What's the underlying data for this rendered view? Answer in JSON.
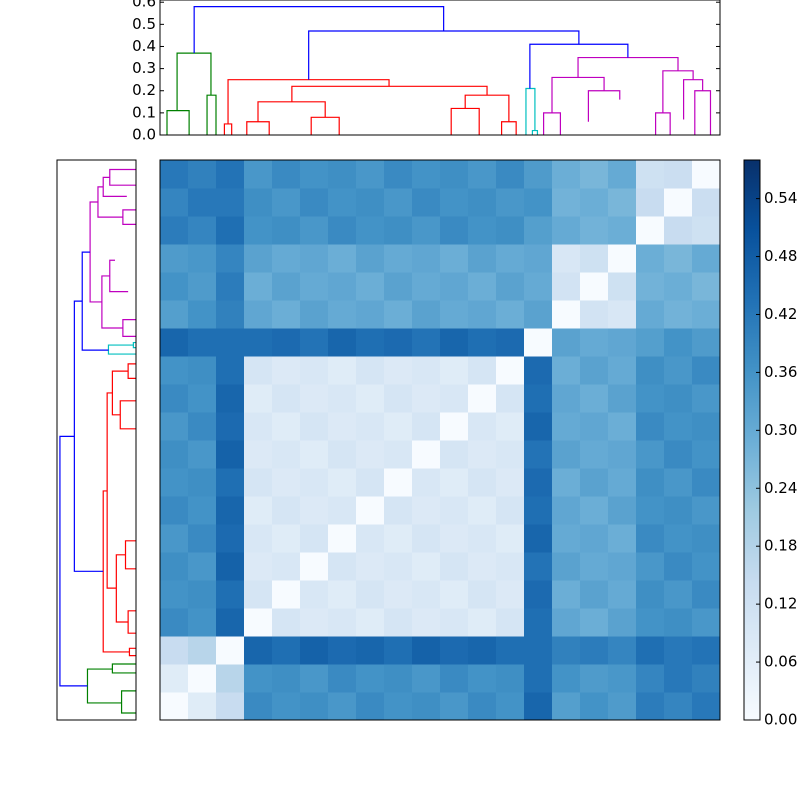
{
  "chart_data": [
    {
      "type": "dendrogram",
      "xlim": [
        0,
        20
      ],
      "ylim": [
        0,
        0.61
      ],
      "yticks": [
        {
          "value": 0,
          "label": "0.0"
        },
        0.1,
        0.2,
        0.3,
        0.4,
        0.5,
        0.6
      ],
      "links": [
        {
          "x": [
            0.25,
            0.25,
            1.04,
            1.04
          ],
          "y": [
            0,
            0.11,
            0.11,
            0
          ],
          "color": "#008000"
        },
        {
          "x": [
            1.68,
            1.68,
            2.0,
            2.0
          ],
          "y": [
            0,
            0.18,
            0.18,
            0
          ],
          "color": "#008000"
        },
        {
          "x": [
            0.61,
            0.61,
            1.82,
            1.82
          ],
          "y": [
            0.11,
            0.37,
            0.37,
            0.18
          ],
          "color": "#008000"
        },
        {
          "x": [
            2.3,
            2.3,
            2.56,
            2.56
          ],
          "y": [
            0,
            0.05,
            0.05,
            0
          ],
          "color": "#ff0000"
        },
        {
          "x": [
            2.43,
            2.43,
            8.18,
            8.18
          ],
          "y": [
            0.05,
            0.25,
            0.25,
            0.22
          ],
          "color": "#ff0000"
        },
        {
          "x": [
            4.71,
            4.71,
            11.68,
            11.68
          ],
          "y": [
            0.15,
            0.22,
            0.22,
            0.18
          ],
          "color": "#ff0000"
        },
        {
          "x": [
            3.5,
            3.5,
            5.9,
            5.9
          ],
          "y": [
            0.06,
            0.15,
            0.15,
            0.08
          ],
          "color": "#ff0000"
        },
        {
          "x": [
            10.9,
            10.9,
            12.46,
            12.46
          ],
          "y": [
            0.12,
            0.18,
            0.18,
            0.06
          ],
          "color": "#ff0000"
        },
        {
          "x": [
            3.1,
            3.1,
            3.9,
            3.9
          ],
          "y": [
            0,
            0.06,
            0.06,
            0
          ],
          "color": "#ff0000"
        },
        {
          "x": [
            5.4,
            5.4,
            6.4,
            6.4
          ],
          "y": [
            0,
            0.08,
            0.08,
            0
          ],
          "color": "#ff0000"
        },
        {
          "x": [
            10.4,
            10.4,
            11.4,
            11.4
          ],
          "y": [
            0,
            0.12,
            0.12,
            0
          ],
          "color": "#ff0000"
        },
        {
          "x": [
            12.2,
            12.2,
            12.72,
            12.72
          ],
          "y": [
            0,
            0.06,
            0.06,
            0
          ],
          "color": "#ff0000"
        },
        {
          "x": [
            13.07,
            13.07,
            13.39,
            13.39
          ],
          "y": [
            0,
            0.21,
            0.21,
            0.02
          ],
          "color": "#00bfbf"
        },
        {
          "x": [
            13.3,
            13.3,
            13.48,
            13.48
          ],
          "y": [
            0,
            0.02,
            0.02,
            0
          ],
          "color": "#00bfbf"
        },
        {
          "x": [
            14.93,
            14.93,
            18.5,
            18.5
          ],
          "y": [
            0.26,
            0.35,
            0.35,
            0.29
          ],
          "color": "#bf00bf"
        },
        {
          "x": [
            14.0,
            14.0,
            15.86,
            15.86
          ],
          "y": [
            0.1,
            0.26,
            0.26,
            0.2
          ],
          "color": "#bf00bf"
        },
        {
          "x": [
            17.96,
            17.96,
            19.04,
            19.04
          ],
          "y": [
            0.1,
            0.29,
            0.29,
            0.25
          ],
          "color": "#bf00bf"
        },
        {
          "x": [
            13.7,
            13.7,
            14.3,
            14.3
          ],
          "y": [
            0,
            0.1,
            0.1,
            0
          ],
          "color": "#bf00bf"
        },
        {
          "x": [
            15.3,
            15.3,
            16.42,
            16.42
          ],
          "y": [
            0.06,
            0.2,
            0.2,
            0.16
          ],
          "color": "#bf00bf"
        },
        {
          "x": [
            17.7,
            17.7,
            18.22,
            18.22
          ],
          "y": [
            0,
            0.1,
            0.1,
            0
          ],
          "color": "#bf00bf"
        },
        {
          "x": [
            18.7,
            18.7,
            19.38,
            19.38
          ],
          "y": [
            0.07,
            0.25,
            0.25,
            0.2
          ],
          "color": "#bf00bf"
        },
        {
          "x": [
            19.1,
            19.1,
            19.66,
            19.66
          ],
          "y": [
            0,
            0.2,
            0.2,
            0
          ],
          "color": "#bf00bf"
        },
        {
          "x": [
            13.21,
            13.21,
            16.71,
            16.71
          ],
          "y": [
            0.21,
            0.41,
            0.41,
            0.35
          ],
          "color": "#0000ff"
        },
        {
          "x": [
            5.31,
            5.31,
            14.96,
            14.96
          ],
          "y": [
            0.25,
            0.47,
            0.47,
            0.41
          ],
          "color": "#0000ff"
        },
        {
          "x": [
            1.22,
            1.22,
            10.13,
            10.13
          ],
          "y": [
            0.37,
            0.58,
            0.58,
            0.47
          ],
          "color": "#0000ff"
        }
      ]
    },
    {
      "type": "heatmap",
      "colormap": "Blues",
      "zlim": [
        0,
        0.58
      ],
      "zticks": [
        {
          "value": 0,
          "label": "0.00"
        },
        0.06,
        0.12,
        0.18,
        0.24,
        {
          "value": 0.3,
          "label": "0.30"
        },
        0.36,
        0.42,
        0.48,
        0.54
      ],
      "values": [
        [
          0,
          0.07,
          0.14,
          0.38,
          0.36,
          0.37,
          0.35,
          0.38,
          0.36,
          0.37,
          0.35,
          0.38,
          0.36,
          0.46,
          0.33,
          0.36,
          0.34,
          0.41,
          0.39,
          0.42
        ],
        [
          0.07,
          0,
          0.17,
          0.36,
          0.37,
          0.35,
          0.38,
          0.36,
          0.37,
          0.35,
          0.38,
          0.36,
          0.37,
          0.44,
          0.36,
          0.34,
          0.35,
          0.39,
          0.42,
          0.4
        ],
        [
          0.14,
          0.17,
          0,
          0.46,
          0.44,
          0.47,
          0.45,
          0.46,
          0.44,
          0.47,
          0.45,
          0.46,
          0.44,
          0.44,
          0.4,
          0.41,
          0.39,
          0.44,
          0.42,
          0.43
        ],
        [
          0.38,
          0.36,
          0.46,
          0,
          0.1,
          0.08,
          0.09,
          0.07,
          0.1,
          0.08,
          0.09,
          0.07,
          0.1,
          0.44,
          0.31,
          0.29,
          0.32,
          0.36,
          0.37,
          0.35
        ],
        [
          0.36,
          0.37,
          0.44,
          0.1,
          0,
          0.09,
          0.07,
          0.1,
          0.08,
          0.09,
          0.07,
          0.1,
          0.08,
          0.45,
          0.29,
          0.32,
          0.3,
          0.37,
          0.35,
          0.38
        ],
        [
          0.37,
          0.35,
          0.47,
          0.08,
          0.09,
          0,
          0.1,
          0.08,
          0.09,
          0.07,
          0.1,
          0.08,
          0.09,
          0.43,
          0.32,
          0.3,
          0.31,
          0.35,
          0.38,
          0.36
        ],
        [
          0.35,
          0.38,
          0.45,
          0.09,
          0.07,
          0.1,
          0,
          0.09,
          0.07,
          0.1,
          0.08,
          0.09,
          0.07,
          0.46,
          0.3,
          0.31,
          0.29,
          0.38,
          0.36,
          0.37
        ],
        [
          0.38,
          0.36,
          0.46,
          0.07,
          0.1,
          0.08,
          0.09,
          0,
          0.1,
          0.08,
          0.09,
          0.07,
          0.1,
          0.44,
          0.31,
          0.29,
          0.32,
          0.36,
          0.37,
          0.35
        ],
        [
          0.36,
          0.37,
          0.44,
          0.1,
          0.08,
          0.09,
          0.07,
          0.1,
          0,
          0.09,
          0.07,
          0.1,
          0.08,
          0.45,
          0.29,
          0.32,
          0.3,
          0.37,
          0.35,
          0.38
        ],
        [
          0.37,
          0.35,
          0.47,
          0.08,
          0.09,
          0.07,
          0.1,
          0.08,
          0.09,
          0,
          0.1,
          0.08,
          0.09,
          0.43,
          0.32,
          0.3,
          0.31,
          0.35,
          0.38,
          0.36
        ],
        [
          0.35,
          0.38,
          0.45,
          0.09,
          0.07,
          0.1,
          0.08,
          0.09,
          0.07,
          0.1,
          0,
          0.09,
          0.07,
          0.46,
          0.3,
          0.31,
          0.29,
          0.38,
          0.36,
          0.37
        ],
        [
          0.38,
          0.36,
          0.46,
          0.07,
          0.1,
          0.08,
          0.09,
          0.07,
          0.1,
          0.08,
          0.09,
          0,
          0.1,
          0.44,
          0.31,
          0.29,
          0.32,
          0.36,
          0.37,
          0.35
        ],
        [
          0.36,
          0.37,
          0.44,
          0.1,
          0.08,
          0.09,
          0.07,
          0.1,
          0.08,
          0.09,
          0.07,
          0.1,
          0,
          0.45,
          0.29,
          0.32,
          0.3,
          0.37,
          0.35,
          0.38
        ],
        [
          0.46,
          0.44,
          0.44,
          0.44,
          0.45,
          0.43,
          0.46,
          0.44,
          0.45,
          0.43,
          0.46,
          0.44,
          0.45,
          0,
          0.32,
          0.3,
          0.31,
          0.33,
          0.36,
          0.34
        ],
        [
          0.33,
          0.36,
          0.4,
          0.31,
          0.29,
          0.32,
          0.3,
          0.31,
          0.29,
          0.32,
          0.3,
          0.31,
          0.29,
          0.32,
          0,
          0.11,
          0.09,
          0.3,
          0.28,
          0.29
        ],
        [
          0.36,
          0.34,
          0.41,
          0.29,
          0.32,
          0.3,
          0.31,
          0.29,
          0.32,
          0.3,
          0.31,
          0.29,
          0.32,
          0.3,
          0.11,
          0,
          0.12,
          0.28,
          0.29,
          0.27
        ],
        [
          0.34,
          0.35,
          0.39,
          0.32,
          0.3,
          0.31,
          0.29,
          0.32,
          0.3,
          0.31,
          0.29,
          0.32,
          0.3,
          0.31,
          0.09,
          0.12,
          0,
          0.29,
          0.27,
          0.3
        ],
        [
          0.41,
          0.39,
          0.44,
          0.36,
          0.37,
          0.35,
          0.38,
          0.36,
          0.37,
          0.35,
          0.38,
          0.36,
          0.37,
          0.33,
          0.3,
          0.28,
          0.29,
          0,
          0.14,
          0.12
        ],
        [
          0.39,
          0.42,
          0.42,
          0.37,
          0.35,
          0.38,
          0.36,
          0.37,
          0.35,
          0.38,
          0.36,
          0.37,
          0.35,
          0.36,
          0.28,
          0.29,
          0.27,
          0.14,
          0,
          0.13
        ],
        [
          0.42,
          0.4,
          0.43,
          0.35,
          0.38,
          0.36,
          0.37,
          0.35,
          0.38,
          0.36,
          0.37,
          0.35,
          0.38,
          0.34,
          0.29,
          0.27,
          0.3,
          0.12,
          0.13,
          0
        ]
      ]
    }
  ]
}
